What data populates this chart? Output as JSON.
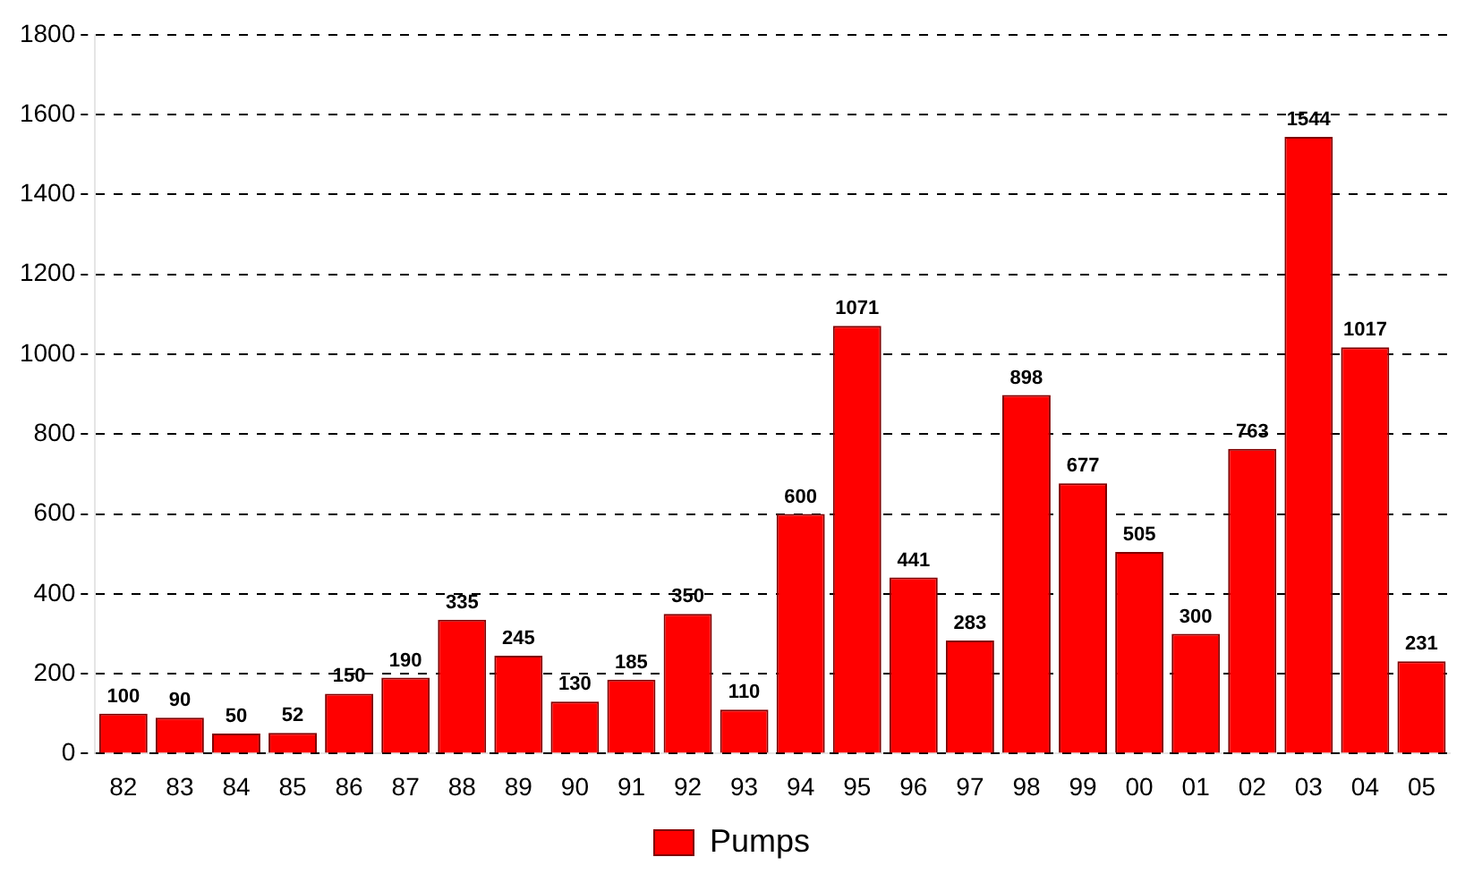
{
  "chart_data": {
    "type": "bar",
    "categories": [
      "82",
      "83",
      "84",
      "85",
      "86",
      "87",
      "88",
      "89",
      "90",
      "91",
      "92",
      "93",
      "94",
      "95",
      "96",
      "97",
      "98",
      "99",
      "00",
      "01",
      "02",
      "03",
      "04",
      "05"
    ],
    "series": [
      {
        "name": "Pumps",
        "color": "#ff0000",
        "values": [
          100,
          90,
          50,
          52,
          150,
          190,
          335,
          245,
          130,
          185,
          350,
          110,
          600,
          1071,
          441,
          283,
          898,
          677,
          505,
          300,
          763,
          1544,
          1017,
          231
        ]
      }
    ],
    "ylim": [
      0,
      1800
    ],
    "yticks": [
      0,
      200,
      400,
      600,
      800,
      1000,
      1200,
      1400,
      1600,
      1800
    ],
    "grid": "y",
    "legend": "bottom",
    "data_labels": true
  }
}
